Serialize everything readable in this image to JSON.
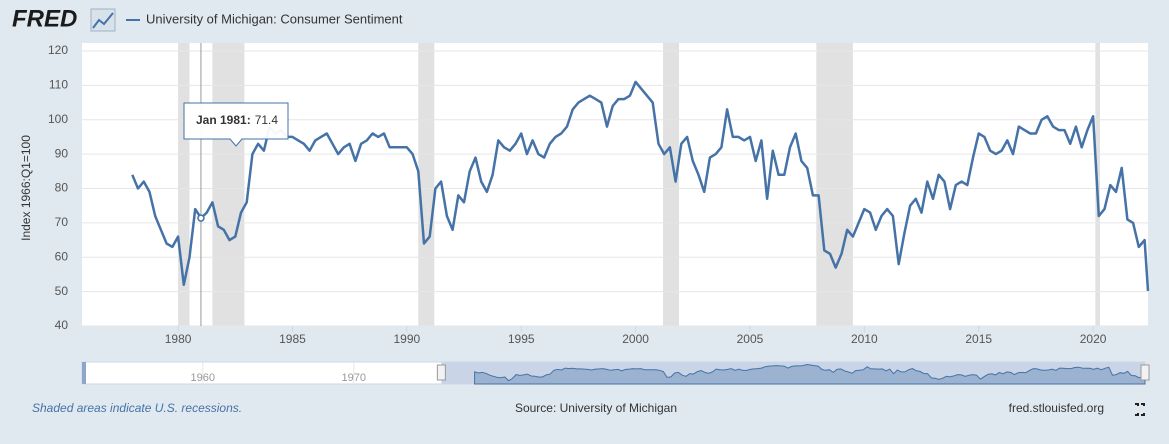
{
  "logo": "FRED",
  "footer": {
    "note": "Shaded areas indicate U.S. recessions.",
    "source": "Source: University of Michigan",
    "site": "fred.stlouisfed.org"
  },
  "chart_data": {
    "type": "line",
    "ylabel": "Index 1966:Q1=100",
    "xlim": [
      1975.8,
      2022.4
    ],
    "xticks": [
      1980,
      1985,
      1990,
      1995,
      2000,
      2005,
      2010,
      2015,
      2020
    ],
    "ylim": [
      40,
      120
    ],
    "yticks": [
      40,
      50,
      60,
      70,
      80,
      90,
      100,
      110,
      120
    ],
    "grid": true,
    "recessions": [
      [
        1980.0,
        1980.5
      ],
      [
        1981.5,
        1982.9
      ],
      [
        1990.5,
        1991.2
      ],
      [
        2001.2,
        2001.9
      ],
      [
        2007.9,
        2009.5
      ],
      [
        2020.1,
        2020.3
      ]
    ],
    "tooltip": {
      "label": "Jan 1981:",
      "value": 71.4,
      "x": 1981.0
    },
    "navigator": {
      "xlim": [
        1952,
        2022.4
      ],
      "xticks": [
        1960,
        1970
      ]
    },
    "x": [
      1978,
      1978.25,
      1978.5,
      1978.75,
      1979,
      1979.25,
      1979.5,
      1979.75,
      1980,
      1980.25,
      1980.5,
      1980.75,
      1981,
      1981.25,
      1981.5,
      1981.75,
      1982,
      1982.25,
      1982.5,
      1982.75,
      1983,
      1983.25,
      1983.5,
      1983.75,
      1984,
      1984.25,
      1984.5,
      1984.75,
      1985,
      1985.25,
      1985.5,
      1985.75,
      1986,
      1986.25,
      1986.5,
      1986.75,
      1987,
      1987.25,
      1987.5,
      1987.75,
      1988,
      1988.25,
      1988.5,
      1988.75,
      1989,
      1989.25,
      1989.5,
      1989.75,
      1990,
      1990.25,
      1990.5,
      1990.75,
      1991,
      1991.25,
      1991.5,
      1991.75,
      1992,
      1992.25,
      1992.5,
      1992.75,
      1993,
      1993.25,
      1993.5,
      1993.75,
      1994,
      1994.25,
      1994.5,
      1994.75,
      1995,
      1995.25,
      1995.5,
      1995.75,
      1996,
      1996.25,
      1996.5,
      1996.75,
      1997,
      1997.25,
      1997.5,
      1997.75,
      1998,
      1998.25,
      1998.5,
      1998.75,
      1999,
      1999.25,
      1999.5,
      1999.75,
      2000,
      2000.25,
      2000.5,
      2000.75,
      2001,
      2001.25,
      2001.5,
      2001.75,
      2002,
      2002.25,
      2002.5,
      2002.75,
      2003,
      2003.25,
      2003.5,
      2003.75,
      2004,
      2004.25,
      2004.5,
      2004.75,
      2005,
      2005.25,
      2005.5,
      2005.75,
      2006,
      2006.25,
      2006.5,
      2006.75,
      2007,
      2007.25,
      2007.5,
      2007.75,
      2008,
      2008.25,
      2008.5,
      2008.75,
      2009,
      2009.25,
      2009.5,
      2009.75,
      2010,
      2010.25,
      2010.5,
      2010.75,
      2011,
      2011.25,
      2011.5,
      2011.75,
      2012,
      2012.25,
      2012.5,
      2012.75,
      2013,
      2013.25,
      2013.5,
      2013.75,
      2014,
      2014.25,
      2014.5,
      2014.75,
      2015,
      2015.25,
      2015.5,
      2015.75,
      2016,
      2016.25,
      2016.5,
      2016.75,
      2017,
      2017.25,
      2017.5,
      2017.75,
      2018,
      2018.25,
      2018.5,
      2018.75,
      2019,
      2019.25,
      2019.5,
      2019.75,
      2020,
      2020.25,
      2020.5,
      2020.75,
      2021,
      2021.25,
      2021.5,
      2021.75,
      2022,
      2022.25,
      2022.4
    ],
    "series": [
      {
        "name": "University of Michigan: Consumer Sentiment",
        "color": "#4572a7",
        "values": [
          84,
          80,
          82,
          79,
          72,
          68,
          64,
          63,
          66,
          52,
          60,
          74,
          71.4,
          73,
          76,
          69,
          68,
          65,
          66,
          73,
          76,
          90,
          93,
          91,
          98,
          96,
          97,
          95,
          95,
          94,
          93,
          91,
          94,
          95,
          96,
          93,
          90,
          92,
          93,
          88,
          93,
          94,
          96,
          95,
          96,
          92,
          92,
          92,
          92,
          90,
          85,
          64,
          66,
          80,
          82,
          72,
          68,
          78,
          76,
          85,
          89,
          82,
          79,
          84,
          94,
          92,
          91,
          93,
          96,
          90,
          94,
          90,
          89,
          93,
          95,
          96,
          98,
          103,
          105,
          106,
          107,
          106,
          105,
          98,
          104,
          106,
          106,
          107,
          111,
          109,
          107,
          105,
          93,
          90,
          92,
          82,
          93,
          95,
          88,
          84,
          79,
          89,
          90,
          92,
          103,
          95,
          95,
          94,
          95,
          88,
          94,
          77,
          91,
          84,
          84,
          92,
          96,
          88,
          86,
          78,
          78,
          62,
          61,
          57,
          61,
          68,
          66,
          70,
          74,
          73,
          68,
          72,
          74,
          72,
          58,
          67,
          75,
          77,
          73,
          82,
          77,
          84,
          82,
          74,
          81,
          82,
          81,
          89,
          96,
          95,
          91,
          90,
          91,
          94,
          90,
          98,
          97,
          96,
          96,
          100,
          101,
          98,
          97,
          97,
          93,
          98,
          92,
          97,
          101,
          72,
          74,
          81,
          79,
          86,
          71,
          70,
          63,
          65,
          50.2
        ]
      }
    ]
  }
}
